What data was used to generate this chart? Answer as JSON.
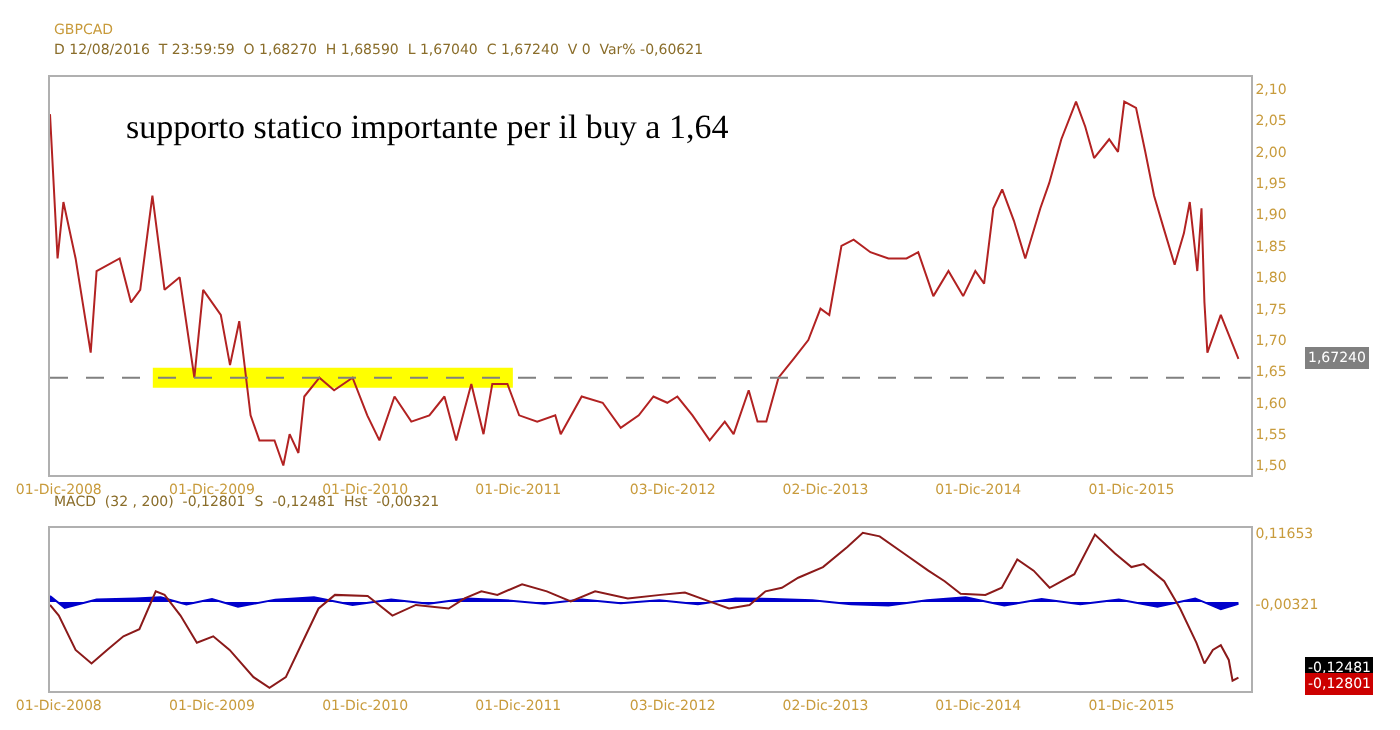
{
  "chart_data": [
    {
      "type": "line",
      "title": "GBPCAD",
      "subtitle": "D 12/08/2016  T 23:59:59  O 1,68270  H 1,68590  L 1,67040  C 1,67240  V 0  Var% -0,60621",
      "series": [
        {
          "color": "#b22222",
          "x": [
            "2008-11-10",
            "2008-11-28",
            "2008-12-12",
            "2009-01-10",
            "2009-02-15",
            "2009-03-01",
            "2009-04-25",
            "2009-05-22",
            "2009-06-13",
            "2009-07-12",
            "2009-08-10",
            "2009-09-15",
            "2009-10-20",
            "2009-11-10",
            "2009-12-22",
            "2010-01-13",
            "2010-02-04",
            "2010-03-03",
            "2010-03-24",
            "2010-04-29",
            "2010-05-20",
            "2010-06-04",
            "2010-06-25",
            "2010-07-09",
            "2010-08-14",
            "2010-09-18",
            "2010-11-01",
            "2010-12-06",
            "2011-01-04",
            "2011-02-09",
            "2011-03-21",
            "2011-05-03",
            "2011-06-08",
            "2011-07-06",
            "2011-08-11",
            "2011-09-09",
            "2011-09-30",
            "2011-11-05",
            "2011-12-03",
            "2012-01-15",
            "2012-02-27",
            "2012-03-11",
            "2012-04-30",
            "2012-06-19",
            "2012-08-01",
            "2012-09-13",
            "2012-10-18",
            "2012-11-20",
            "2012-12-14",
            "2013-01-19",
            "2013-03-01",
            "2013-04-06",
            "2013-04-27",
            "2013-06-02",
            "2013-06-23",
            "2013-07-14",
            "2013-08-12",
            "2013-09-17",
            "2013-10-22",
            "2013-11-20",
            "2013-12-11",
            "2014-01-09",
            "2014-02-07",
            "2014-03-19",
            "2014-05-01",
            "2014-06-13",
            "2014-07-11",
            "2014-08-16",
            "2014-09-21",
            "2014-10-26",
            "2014-11-24",
            "2014-12-15",
            "2015-01-06",
            "2015-01-27",
            "2015-02-24",
            "2015-03-23",
            "2015-04-28",
            "2015-05-19",
            "2015-06-17",
            "2015-07-22",
            "2015-08-13",
            "2015-09-03",
            "2015-10-09",
            "2015-10-30",
            "2015-11-14",
            "2015-12-12",
            "2016-01-03",
            "2016-01-24",
            "2016-02-15",
            "2016-03-13",
            "2016-04-04",
            "2016-04-18",
            "2016-05-06",
            "2016-05-16",
            "2016-05-23",
            "2016-05-30",
            "2016-07-01",
            "2016-08-12"
          ],
          "values": [
            2.06,
            1.83,
            1.92,
            1.83,
            1.68,
            1.81,
            1.83,
            1.76,
            1.78,
            1.93,
            1.78,
            1.8,
            1.64,
            1.78,
            1.74,
            1.66,
            1.73,
            1.58,
            1.54,
            1.54,
            1.5,
            1.55,
            1.52,
            1.61,
            1.64,
            1.62,
            1.64,
            1.58,
            1.54,
            1.61,
            1.57,
            1.58,
            1.61,
            1.54,
            1.63,
            1.55,
            1.63,
            1.63,
            1.58,
            1.57,
            1.58,
            1.55,
            1.61,
            1.6,
            1.56,
            1.58,
            1.61,
            1.6,
            1.61,
            1.58,
            1.54,
            1.57,
            1.55,
            1.62,
            1.57,
            1.57,
            1.64,
            1.67,
            1.7,
            1.75,
            1.74,
            1.85,
            1.86,
            1.84,
            1.83,
            1.83,
            1.84,
            1.77,
            1.81,
            1.77,
            1.81,
            1.79,
            1.91,
            1.94,
            1.89,
            1.83,
            1.91,
            1.95,
            2.02,
            2.08,
            2.04,
            1.99,
            2.02,
            2.0,
            2.08,
            2.07,
            2.0,
            1.93,
            1.88,
            1.82,
            1.87,
            1.92,
            1.81,
            1.91,
            1.76,
            1.68,
            1.74,
            1.67
          ]
        }
      ],
      "xlim": [
        "2008-11-10",
        "2016-09-10"
      ],
      "xticks": [
        {
          "value": "2008-12-01",
          "label": "01-Dic-2008"
        },
        {
          "value": "2009-12-01",
          "label": "01-Dic-2009"
        },
        {
          "value": "2010-12-01",
          "label": "01-Dic-2010"
        },
        {
          "value": "2011-12-01",
          "label": "01-Dic-2011"
        },
        {
          "value": "2012-12-03",
          "label": "03-Dic-2012"
        },
        {
          "value": "2013-12-02",
          "label": "02-Dic-2013"
        },
        {
          "value": "2014-12-01",
          "label": "01-Dic-2014"
        },
        {
          "value": "2015-12-01",
          "label": "01-Dic-2015"
        }
      ],
      "ylim": [
        1.485,
        2.12
      ],
      "yticks": [
        {
          "value": 1.5,
          "label": "1,50"
        },
        {
          "value": 1.55,
          "label": "1,55"
        },
        {
          "value": 1.6,
          "label": "1,60"
        },
        {
          "value": 1.65,
          "label": "1,65"
        },
        {
          "value": 1.7,
          "label": "1,70"
        },
        {
          "value": 1.75,
          "label": "1,75"
        },
        {
          "value": 1.8,
          "label": "1,80"
        },
        {
          "value": 1.85,
          "label": "1,85"
        },
        {
          "value": 1.9,
          "label": "1,90"
        },
        {
          "value": 1.95,
          "label": "1,95"
        },
        {
          "value": 2.0,
          "label": "2,00"
        },
        {
          "value": 2.05,
          "label": "2,05"
        },
        {
          "value": 2.1,
          "label": "2,10"
        }
      ],
      "ref_lines": [
        {
          "axis": "y",
          "value": 1.64,
          "color": "#808080",
          "line_style": "dashed"
        }
      ],
      "bands": [
        {
          "axis": "x",
          "from": "2009-07-13",
          "to": "2011-11-18",
          "color": "#ffff00"
        }
      ],
      "annotations": [
        "supporto statico importante per il buy a 1,64",
        "1,67240"
      ],
      "grid": false,
      "marker": "none",
      "line_style": "solid"
    },
    {
      "type": "line",
      "subtitle": "MACD  (32 , 200)  -0,12801  S  -0,12481  Hst  -0,00321",
      "series": [
        {
          "color": "#0000cc",
          "type": "area",
          "x": [
            "2008-11-10",
            "2008-12-15",
            "2009-03-01",
            "2009-06-01",
            "2009-08-01",
            "2009-10-01",
            "2009-12-01",
            "2010-02-01",
            "2010-05-01",
            "2010-08-01",
            "2010-11-01",
            "2011-02-01",
            "2011-05-01",
            "2011-08-01",
            "2011-11-01",
            "2012-02-01",
            "2012-05-01",
            "2012-08-01",
            "2012-11-01",
            "2013-02-01",
            "2013-05-01",
            "2013-08-01",
            "2013-11-01",
            "2014-02-01",
            "2014-05-01",
            "2014-08-01",
            "2014-11-01",
            "2015-02-01",
            "2015-05-01",
            "2015-08-01",
            "2015-11-01",
            "2016-02-01",
            "2016-05-01",
            "2016-07-01",
            "2016-08-12"
          ],
          "values": [
            0.01,
            -0.01,
            0.004,
            0.006,
            0.008,
            -0.004,
            0.005,
            -0.008,
            0.004,
            0.008,
            -0.005,
            0.004,
            -0.003,
            0.006,
            0.003,
            -0.003,
            0.004,
            -0.002,
            0.003,
            -0.004,
            0.006,
            0.005,
            0.003,
            -0.004,
            -0.006,
            0.003,
            0.008,
            -0.006,
            0.005,
            -0.004,
            0.004,
            -0.008,
            0.006,
            -0.012,
            -0.003
          ]
        },
        {
          "color": "#8b1a1a",
          "x": [
            "2008-11-10",
            "2008-12-01",
            "2009-01-10",
            "2009-02-17",
            "2009-03-26",
            "2009-05-04",
            "2009-06-11",
            "2009-07-20",
            "2009-08-10",
            "2009-09-17",
            "2009-10-26",
            "2009-12-04",
            "2010-01-12",
            "2010-03-10",
            "2010-04-17",
            "2010-05-26",
            "2010-07-04",
            "2010-08-12",
            "2010-09-20",
            "2010-12-07",
            "2011-02-04",
            "2011-04-01",
            "2011-06-18",
            "2011-07-26",
            "2011-09-04",
            "2011-10-12",
            "2011-12-10",
            "2012-02-07",
            "2012-04-04",
            "2012-06-01",
            "2012-08-18",
            "2012-11-04",
            "2013-01-01",
            "2013-02-28",
            "2013-04-16",
            "2013-06-04",
            "2013-07-12",
            "2013-08-20",
            "2013-09-28",
            "2013-11-26",
            "2014-01-23",
            "2014-03-01",
            "2014-04-10",
            "2014-06-07",
            "2014-08-04",
            "2014-09-12",
            "2014-10-20",
            "2014-12-18",
            "2015-01-26",
            "2015-03-04",
            "2015-04-12",
            "2015-05-20",
            "2015-07-18",
            "2015-09-05",
            "2015-10-23",
            "2015-12-01",
            "2015-12-30",
            "2016-02-17",
            "2016-03-26",
            "2016-05-04",
            "2016-05-23",
            "2016-06-12",
            "2016-07-01",
            "2016-07-20",
            "2016-07-29",
            "2016-08-12"
          ],
          "values": [
            -0.005,
            -0.023,
            -0.081,
            -0.104,
            -0.081,
            -0.058,
            -0.046,
            0.018,
            0.012,
            -0.023,
            -0.069,
            -0.058,
            -0.081,
            -0.127,
            -0.145,
            -0.127,
            -0.069,
            -0.011,
            0.012,
            0.01,
            -0.023,
            -0.005,
            -0.011,
            0.006,
            0.018,
            0.012,
            0.03,
            0.018,
            0.001,
            0.018,
            0.006,
            0.012,
            0.016,
            0.001,
            -0.011,
            -0.005,
            0.018,
            0.024,
            0.041,
            0.059,
            0.093,
            0.117,
            0.111,
            0.082,
            0.053,
            0.035,
            0.014,
            0.012,
            0.024,
            0.072,
            0.053,
            0.024,
            0.047,
            0.114,
            0.082,
            0.059,
            0.064,
            0.035,
            -0.011,
            -0.069,
            -0.104,
            -0.081,
            -0.073,
            -0.098,
            -0.133,
            -0.128
          ]
        }
      ],
      "xlim": [
        "2008-11-10",
        "2016-09-10"
      ],
      "xticks": [
        {
          "value": "2008-12-01",
          "label": "01-Dic-2008"
        },
        {
          "value": "2009-12-01",
          "label": "01-Dic-2009"
        },
        {
          "value": "2010-12-01",
          "label": "01-Dic-2010"
        },
        {
          "value": "2011-12-01",
          "label": "01-Dic-2011"
        },
        {
          "value": "2012-12-03",
          "label": "03-Dic-2012"
        },
        {
          "value": "2013-12-02",
          "label": "02-Dic-2013"
        },
        {
          "value": "2014-12-01",
          "label": "01-Dic-2014"
        },
        {
          "value": "2015-12-01",
          "label": "01-Dic-2015"
        }
      ],
      "ylim": [
        -0.15,
        0.125
      ],
      "yticks": [
        {
          "value": 0.11653,
          "label": "0,11653"
        },
        {
          "value": -0.00321,
          "label": "-0,00321"
        }
      ],
      "annotations": [
        "-0,12481",
        "-0,12801"
      ],
      "grid": false,
      "marker": "none",
      "line_style": "solid"
    }
  ]
}
